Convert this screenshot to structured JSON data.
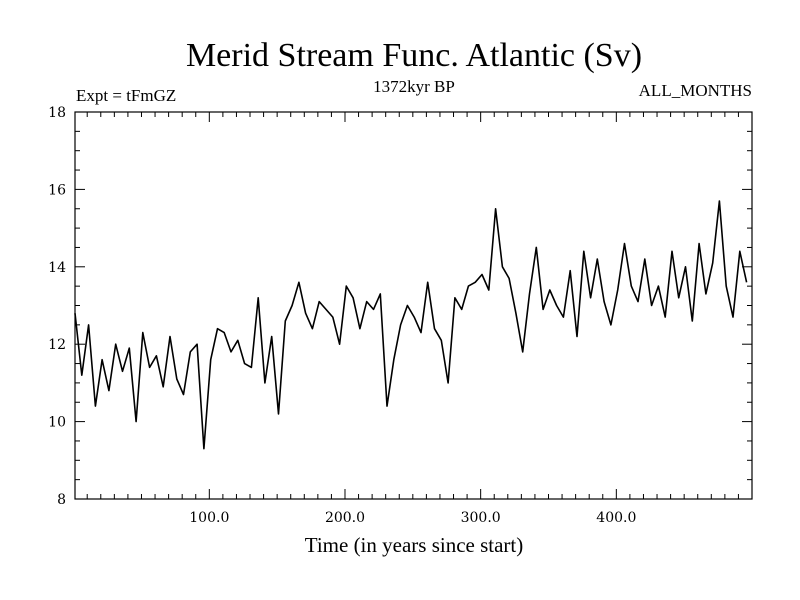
{
  "chart_data": {
    "type": "line",
    "title": "Merid Stream Func. Atlantic (Sv)",
    "experiment_label": "Expt = tFmGZ",
    "period_label": "1372kyr BP",
    "months_label": "ALL_MONTHS",
    "xlabel": "Time (in years since start)",
    "ylabel": "",
    "xlim": [
      1,
      500
    ],
    "ylim": [
      8,
      18
    ],
    "x_ticks": [
      100,
      200,
      300,
      400
    ],
    "x_tick_labels": [
      "100.0",
      "200.0",
      "300.0",
      "400.0"
    ],
    "y_ticks": [
      8,
      10,
      12,
      14,
      16,
      18
    ],
    "y_tick_labels": [
      "8",
      "10",
      "12",
      "14",
      "16",
      "18"
    ],
    "grid": false,
    "series": [
      {
        "name": "Merid Stream Func. Atlantic",
        "color": "#000000",
        "x_start": 1,
        "x_step": 5,
        "values": [
          12.8,
          11.2,
          12.5,
          10.4,
          11.6,
          10.8,
          12.0,
          11.3,
          11.9,
          10.0,
          12.3,
          11.4,
          11.7,
          10.9,
          12.2,
          11.1,
          10.7,
          11.8,
          12.0,
          9.3,
          11.6,
          12.4,
          12.3,
          11.8,
          12.1,
          11.5,
          11.4,
          13.2,
          11.0,
          12.2,
          10.2,
          12.6,
          13.0,
          13.6,
          12.8,
          12.4,
          13.1,
          12.9,
          12.7,
          12.0,
          13.5,
          13.2,
          12.4,
          13.1,
          12.9,
          13.3,
          10.4,
          11.6,
          12.5,
          13.0,
          12.7,
          12.3,
          13.6,
          12.4,
          12.1,
          11.0,
          13.2,
          12.9,
          13.5,
          13.6,
          13.8,
          13.4,
          15.5,
          14.0,
          13.7,
          12.8,
          11.8,
          13.3,
          14.5,
          12.9,
          13.4,
          13.0,
          12.7,
          13.9,
          12.2,
          14.4,
          13.2,
          14.2,
          13.1,
          12.5,
          13.4,
          14.6,
          13.5,
          13.1,
          14.2,
          13.0,
          13.5,
          12.7,
          14.4,
          13.2,
          14.0,
          12.6,
          14.6,
          13.3,
          14.1,
          15.7,
          13.5,
          12.7,
          14.4,
          13.6
        ]
      }
    ]
  }
}
